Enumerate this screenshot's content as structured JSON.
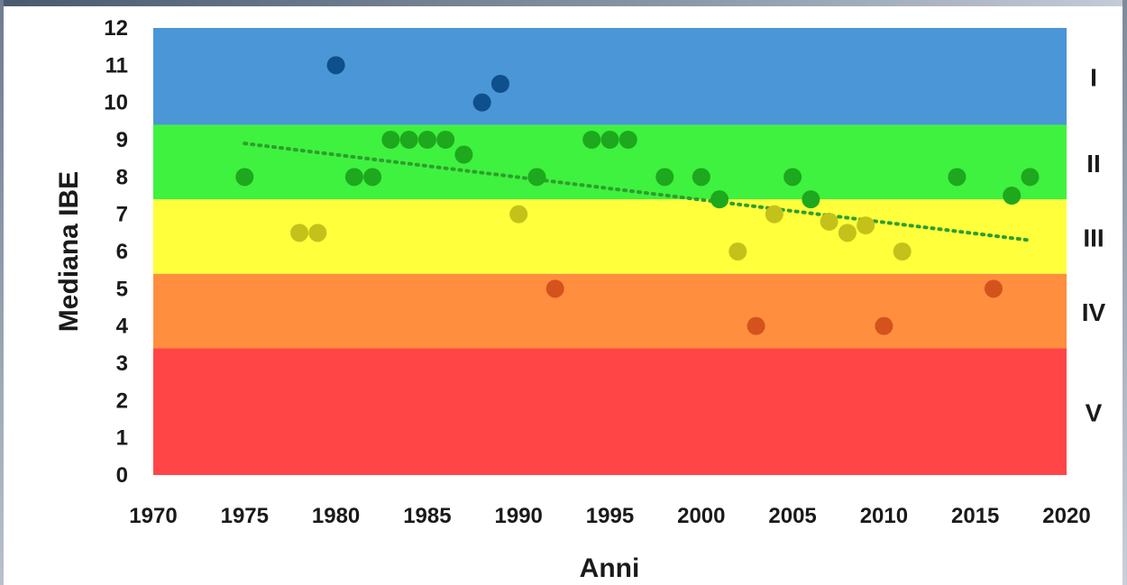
{
  "chart_data": {
    "type": "scatter",
    "title": "",
    "xlabel": "Anni",
    "ylabel": "Mediana IBE",
    "xlim": [
      1970,
      2020
    ],
    "ylim": [
      0,
      12
    ],
    "x_ticks": [
      "1970",
      "1975",
      "1980",
      "1985",
      "1990",
      "1995",
      "2000",
      "2005",
      "2010",
      "2015",
      "2020"
    ],
    "y_ticks": [
      "0",
      "1",
      "2",
      "3",
      "4",
      "5",
      "6",
      "7",
      "8",
      "9",
      "10",
      "11",
      "12"
    ],
    "grid": false,
    "bands": [
      {
        "label": "I",
        "from": 9.4,
        "to": 12,
        "color": "#4a96d6"
      },
      {
        "label": "II",
        "from": 7.4,
        "to": 9.4,
        "color": "#3ff23f"
      },
      {
        "label": "III",
        "from": 5.4,
        "to": 7.4,
        "color": "#ffff3c"
      },
      {
        "label": "IV",
        "from": 3.4,
        "to": 5.4,
        "color": "#ff8e3e"
      },
      {
        "label": "V",
        "from": 0,
        "to": 3.4,
        "color": "#ff4545"
      }
    ],
    "points": [
      {
        "x": 1975,
        "y": 8
      },
      {
        "x": 1978,
        "y": 6.5
      },
      {
        "x": 1979,
        "y": 6.5
      },
      {
        "x": 1980,
        "y": 11
      },
      {
        "x": 1981,
        "y": 8
      },
      {
        "x": 1982,
        "y": 8
      },
      {
        "x": 1983,
        "y": 9
      },
      {
        "x": 1984,
        "y": 9
      },
      {
        "x": 1985,
        "y": 9
      },
      {
        "x": 1986,
        "y": 9
      },
      {
        "x": 1987,
        "y": 8.6
      },
      {
        "x": 1988,
        "y": 10
      },
      {
        "x": 1989,
        "y": 10.5
      },
      {
        "x": 1990,
        "y": 7
      },
      {
        "x": 1991,
        "y": 8
      },
      {
        "x": 1992,
        "y": 5
      },
      {
        "x": 1994,
        "y": 9
      },
      {
        "x": 1995,
        "y": 9
      },
      {
        "x": 1996,
        "y": 9
      },
      {
        "x": 1998,
        "y": 8
      },
      {
        "x": 2000,
        "y": 8
      },
      {
        "x": 2001,
        "y": 7.4
      },
      {
        "x": 2002,
        "y": 6
      },
      {
        "x": 2003,
        "y": 4
      },
      {
        "x": 2004,
        "y": 7
      },
      {
        "x": 2005,
        "y": 8
      },
      {
        "x": 2006,
        "y": 7.4
      },
      {
        "x": 2007,
        "y": 6.8
      },
      {
        "x": 2008,
        "y": 6.5
      },
      {
        "x": 2009,
        "y": 6.7
      },
      {
        "x": 2010,
        "y": 4
      },
      {
        "x": 2011,
        "y": 6
      },
      {
        "x": 2014,
        "y": 8
      },
      {
        "x": 2016,
        "y": 5
      },
      {
        "x": 2017,
        "y": 7.5
      },
      {
        "x": 2018,
        "y": 8
      }
    ],
    "trendline": {
      "x": [
        1975,
        2018
      ],
      "y": [
        8.9,
        6.3
      ],
      "style": "dotted",
      "color": "#2e9e2e"
    },
    "point_colors": {
      "I": "#0e4f8e",
      "II": "#1ea81e",
      "III": "#c4c21a",
      "IV": "#d4531c",
      "V": "#b71c1c"
    }
  }
}
